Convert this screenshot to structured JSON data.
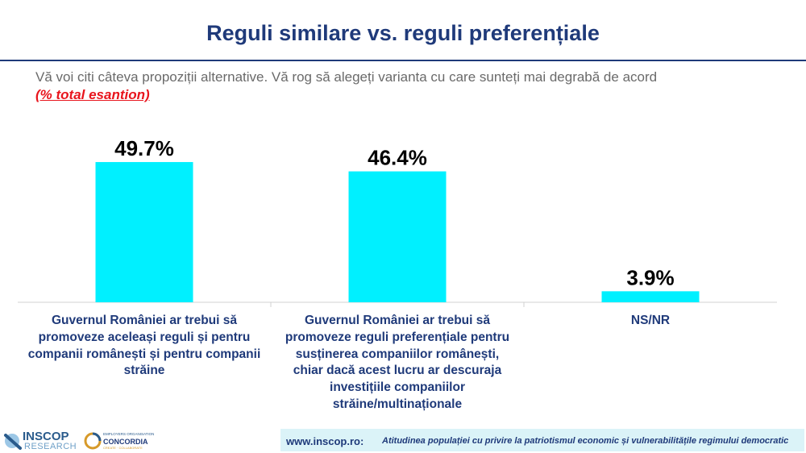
{
  "header": {
    "title": "Reguli similare vs. reguli preferențiale",
    "subtitle": "Vă voi citi câteva propoziții alternative. Vă rog să alegeți varianta cu care sunteți mai degrabă de acord",
    "sample_note": "(% total esantion)"
  },
  "colors": {
    "bar": "#00f0ff",
    "title": "#1f3a7a",
    "accent": "#e8141c"
  },
  "chart_data": {
    "type": "bar",
    "categories": [
      "Guvernul României ar trebui să promoveze aceleași reguli și pentru companii românești și pentru companii străine",
      "Guvernul României ar trebui să promoveze reguli preferențiale pentru susținerea companiilor românești, chiar dacă acest lucru ar descuraja investițiile companiilor străine/multinaționale",
      "NS/NR"
    ],
    "values": [
      49.7,
      46.4,
      3.9
    ],
    "data_labels": [
      "49.7%",
      "46.4%",
      "3.9%"
    ],
    "ylim": [
      0,
      60
    ],
    "grid": false
  },
  "footer": {
    "url": "www.inscop.ro:",
    "description": "Atitudinea populației cu privire la patriotismul economic și vulnerabilitățile regimului democratic"
  },
  "logos": {
    "inscop": "INSCOP",
    "research": "RESEARCH",
    "employers": "EMPLOYERS ORGANISATION",
    "concordia": "CONCORDIA",
    "concordia_sub": "CREATE · COLLABORATE"
  }
}
